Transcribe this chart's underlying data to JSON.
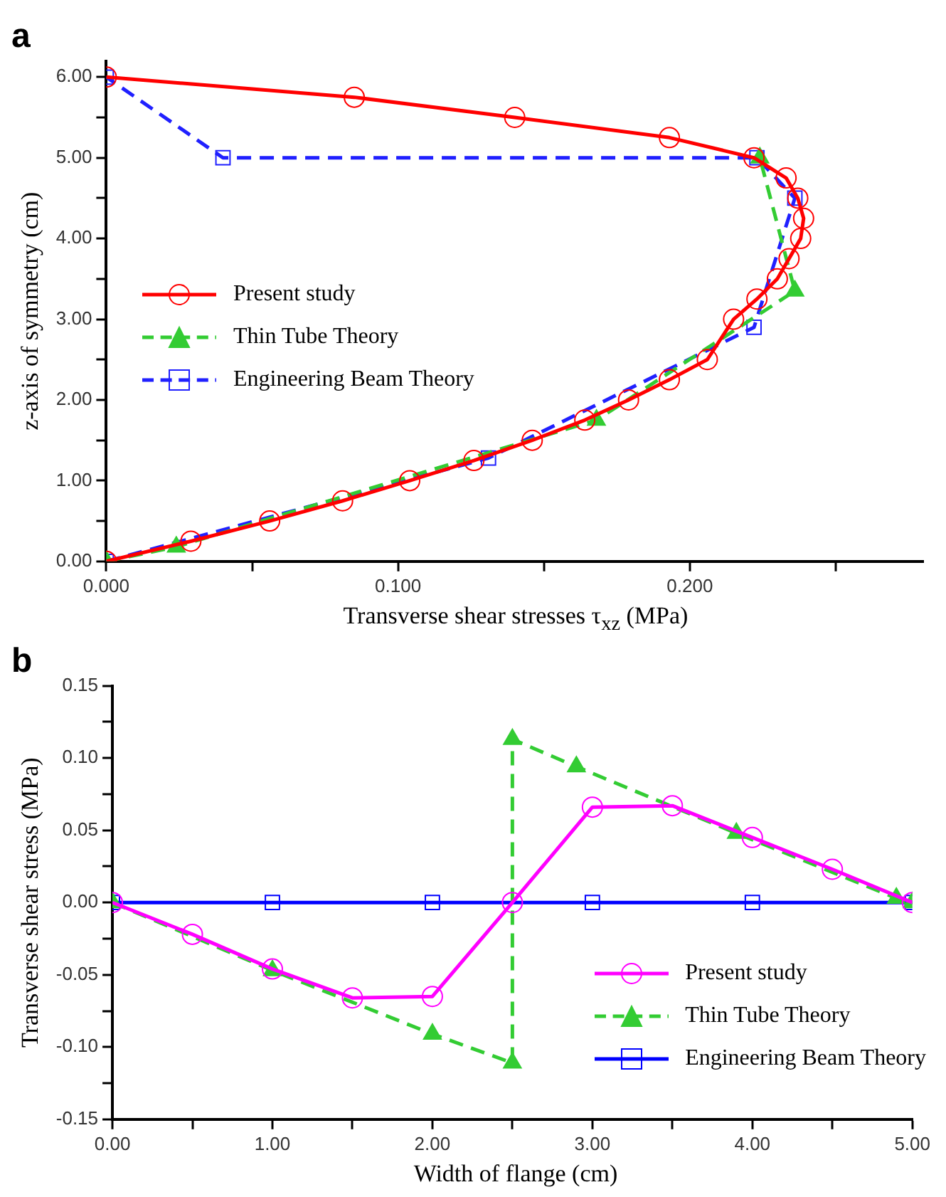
{
  "chart_data": [
    {
      "type": "line",
      "title": "a",
      "xlabel": "Transverse shear stresses τ$_{xz}$ (MPa)",
      "ylabel": "z-axis of symmetry (cm)",
      "xlim": [
        0,
        0.28
      ],
      "ylim": [
        0,
        6.2
      ],
      "xticks": [
        {
          "value": 0,
          "label": "0.000"
        },
        {
          "value": 0.05,
          "label": null
        },
        {
          "value": 0.1,
          "label": "0.100"
        },
        {
          "value": 0.15,
          "label": null
        },
        {
          "value": 0.2,
          "label": "0.200"
        },
        {
          "value": 0.25,
          "label": null
        }
      ],
      "yticks": [
        {
          "value": 0,
          "label": "0.00"
        },
        {
          "value": 0.5,
          "label": null
        },
        {
          "value": 1,
          "label": "1.00"
        },
        {
          "value": 1.5,
          "label": null
        },
        {
          "value": 2,
          "label": "2.00"
        },
        {
          "value": 2.5,
          "label": null
        },
        {
          "value": 3,
          "label": "3.00"
        },
        {
          "value": 3.5,
          "label": null
        },
        {
          "value": 4,
          "label": "4.00"
        },
        {
          "value": 4.5,
          "label": null
        },
        {
          "value": 5,
          "label": "5.00"
        },
        {
          "value": 5.5,
          "label": null
        },
        {
          "value": 6,
          "label": "6.00"
        }
      ],
      "grid": false,
      "legend": "left",
      "series": [
        {
          "name": "Present study",
          "color": "#ff0000",
          "marker": "circle",
          "line_style": "solid",
          "x": [
            0,
            0.029,
            0.056,
            0.081,
            0.104,
            0.126,
            0.146,
            0.164,
            0.179,
            0.193,
            0.206,
            0.215,
            0.223,
            0.23,
            0.234,
            0.238,
            0.239,
            0.237,
            0.233,
            0.222,
            0.193,
            0.14,
            0.085,
            0
          ],
          "values": [
            0,
            0.25,
            0.5,
            0.75,
            1,
            1.25,
            1.5,
            1.75,
            2,
            2.25,
            2.5,
            3,
            3.25,
            3.5,
            3.75,
            4,
            4.25,
            4.5,
            4.75,
            5,
            5.25,
            5.5,
            5.75,
            6
          ]
        },
        {
          "name": "Thin Tube Theory",
          "color": "#33cc33",
          "marker": "triangle",
          "line_style": "dashed",
          "x": [
            0,
            0.024,
            0.168,
            0.236,
            0.224
          ],
          "values": [
            0,
            0.18,
            1.75,
            3.35,
            5
          ]
        },
        {
          "name": "Engineering Beam Theory",
          "color": "#2020ff",
          "marker": "square",
          "line_style": "dashed",
          "x": [
            0,
            0.131,
            0.222,
            0.236,
            0.223,
            0.04,
            0
          ],
          "values": [
            0,
            1.28,
            2.9,
            4.5,
            5,
            5,
            6
          ]
        }
      ]
    },
    {
      "type": "line",
      "title": "b",
      "xlabel": "Width of flange (cm)",
      "ylabel": "Transverse shear stress (MPa)",
      "xlim": [
        0,
        5
      ],
      "ylim": [
        -0.15,
        0.15
      ],
      "xticks": [
        {
          "value": 0,
          "label": "0.00"
        },
        {
          "value": 0.5,
          "label": null
        },
        {
          "value": 1,
          "label": "1.00"
        },
        {
          "value": 1.5,
          "label": null
        },
        {
          "value": 2,
          "label": "2.00"
        },
        {
          "value": 2.5,
          "label": null
        },
        {
          "value": 3,
          "label": "3.00"
        },
        {
          "value": 3.5,
          "label": null
        },
        {
          "value": 4,
          "label": "4.00"
        },
        {
          "value": 4.5,
          "label": null
        },
        {
          "value": 5,
          "label": "5.00"
        }
      ],
      "yticks": [
        {
          "value": -0.15,
          "label": "-0.15"
        },
        {
          "value": -0.125,
          "label": null
        },
        {
          "value": -0.1,
          "label": "-0.10"
        },
        {
          "value": -0.075,
          "label": null
        },
        {
          "value": -0.05,
          "label": "-0.05"
        },
        {
          "value": -0.025,
          "label": null
        },
        {
          "value": 0,
          "label": "0.00"
        },
        {
          "value": 0.025,
          "label": null
        },
        {
          "value": 0.05,
          "label": "0.05"
        },
        {
          "value": 0.075,
          "label": null
        },
        {
          "value": 0.1,
          "label": "0.10"
        },
        {
          "value": 0.125,
          "label": null
        },
        {
          "value": 0.15,
          "label": "0.15"
        }
      ],
      "grid": false,
      "legend": "bottom right",
      "series": [
        {
          "name": "Present study",
          "color": "#ff00ff",
          "marker": "circle",
          "line_style": "solid",
          "x": [
            0,
            0.5,
            1,
            1.5,
            2,
            2.5,
            3,
            3.5,
            4,
            4.5,
            5
          ],
          "values": [
            0,
            -0.022,
            -0.046,
            -0.066,
            -0.065,
            0,
            0.066,
            0.067,
            0.045,
            0.023,
            0
          ]
        },
        {
          "name": "Thin Tube Theory",
          "color": "#33cc33",
          "marker": "triangle",
          "line_style": "dashed",
          "x": [
            0,
            1,
            2,
            2.5,
            2.5,
            2.9,
            3.9,
            4.9,
            5
          ],
          "values": [
            0,
            -0.047,
            -0.091,
            -0.111,
            0.113,
            0.094,
            0.048,
            0.003,
            0
          ]
        },
        {
          "name": "Engineering Beam Theory",
          "color": "#0000ff",
          "marker": "square",
          "line_style": "solid",
          "x": [
            0,
            1,
            2,
            3,
            4,
            5
          ],
          "values": [
            0,
            0,
            0,
            0,
            0,
            0
          ]
        }
      ]
    }
  ]
}
